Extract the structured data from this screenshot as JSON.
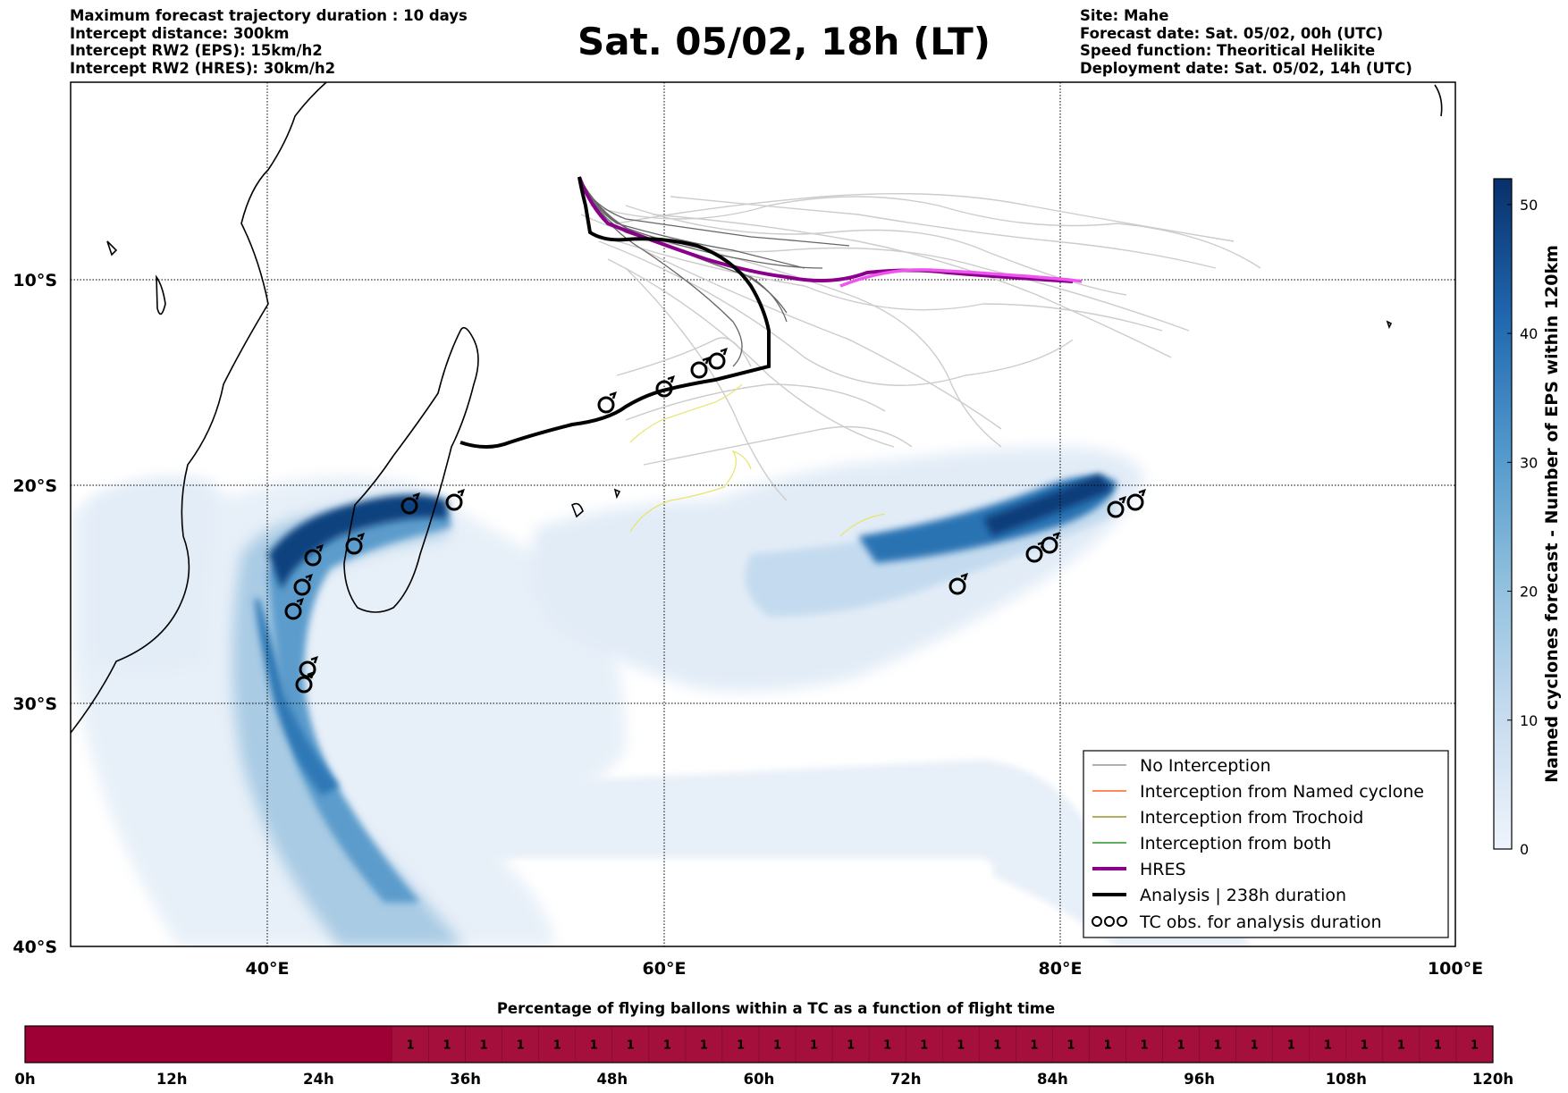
{
  "header_left": [
    "Maximum forecast trajectory duration : 10 days",
    "Intercept distance: 300km",
    "Intercept RW2 (EPS):  15km/h2",
    "Intercept RW2 (HRES): 30km/h2"
  ],
  "header_right": [
    "Site: Mahe",
    "Forecast date: Sat. 05/02, 00h (UTC)",
    "Speed function: Theoritical Helikite",
    "Deployment date: Sat. 05/02, 14h (UTC)"
  ],
  "title": "Sat. 05/02, 18h (LT)",
  "map": {
    "lon_ticks": [
      "40°E",
      "60°E",
      "80°E",
      "100°E"
    ],
    "lat_ticks": [
      "10°S",
      "20°S",
      "30°S",
      "40°S"
    ],
    "lon_range": [
      30,
      100
    ],
    "lat_range": [
      -1,
      -40
    ],
    "grid": true
  },
  "colorbar": {
    "label": "Named cyclones forecast - Number of EPS within 120km",
    "ticks": [
      "0",
      "10",
      "20",
      "30",
      "40",
      "50"
    ],
    "range": [
      0,
      52
    ],
    "colormap": "Blues"
  },
  "legend": {
    "items": [
      {
        "label": "No Interception",
        "color": "#808080"
      },
      {
        "label": "Interception from Named cyclone",
        "color": "#ff4500"
      },
      {
        "label": "Interception from Trochoid",
        "color": "#808000"
      },
      {
        "label": "Interception from both",
        "color": "#008000"
      },
      {
        "label": "HRES",
        "color": "#8b008b"
      },
      {
        "label": "Analysis | 238h duration",
        "color": "#000000"
      },
      {
        "label": "TC obs. for analysis duration",
        "color": "#000000"
      }
    ]
  },
  "timebar": {
    "title": "Percentage of flying ballons within a TC as a function of flight time",
    "ticks": [
      "0h",
      "12h",
      "24h",
      "36h",
      "48h",
      "60h",
      "72h",
      "84h",
      "96h",
      "108h",
      "120h"
    ],
    "cell_values": [
      "1",
      "1",
      "1",
      "1",
      "1",
      "1",
      "1",
      "1",
      "1",
      "1",
      "1",
      "1",
      "1",
      "1",
      "1",
      "1",
      "1",
      "1",
      "1",
      "1",
      "1",
      "1",
      "1",
      "1",
      "1",
      "1",
      "1",
      "1",
      "1",
      "1"
    ],
    "fill_color": "#a50f3c",
    "empty_color": "#9e0036"
  }
}
